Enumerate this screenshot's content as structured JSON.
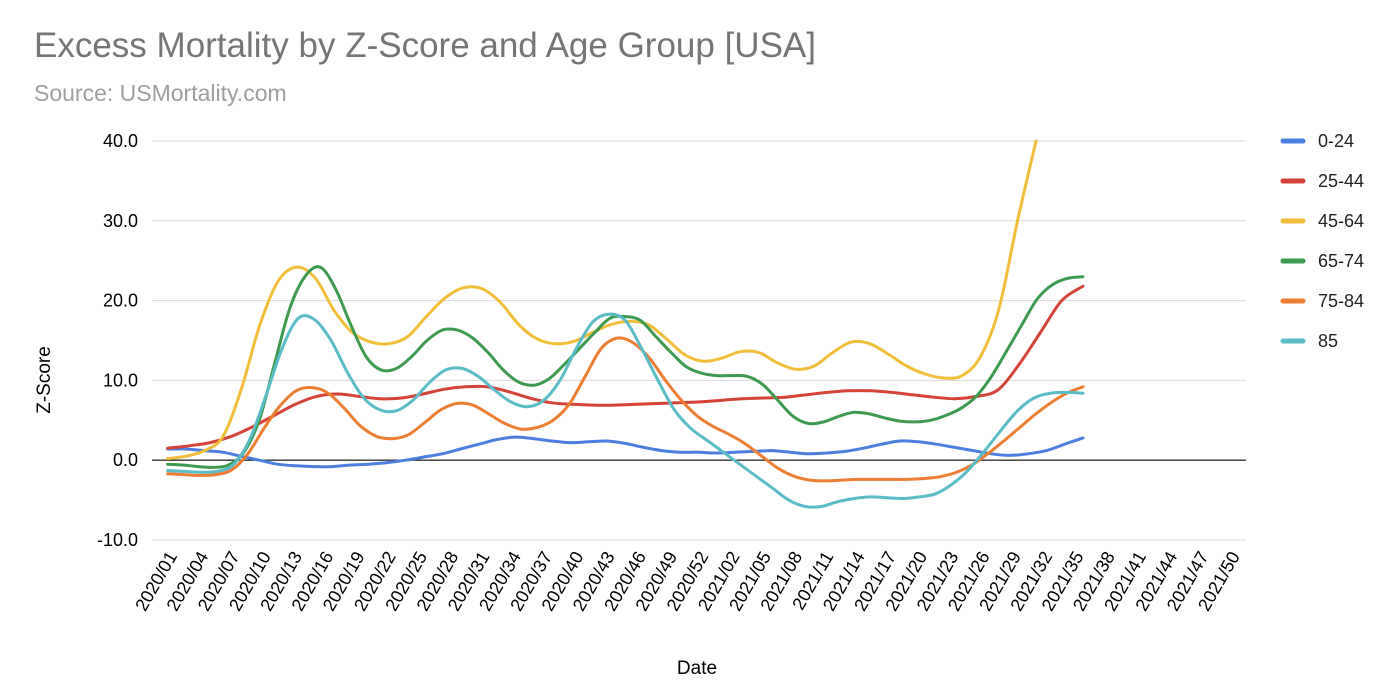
{
  "chart_data": {
    "type": "line",
    "title": "Excess Mortality by Z-Score and Age Group [USA]",
    "subtitle": "Source: USMortality.com",
    "xlabel": "Date",
    "ylabel": "Z-Score",
    "ylim": [
      -10,
      40
    ],
    "yticks": [
      "40.0",
      "30.0",
      "20.0",
      "10.0",
      "0.0",
      "-10.0"
    ],
    "ytick_values": [
      40,
      30,
      20,
      10,
      0,
      -10
    ],
    "grid": true,
    "legend_position": "right",
    "x_tick_labels": [
      "2020/01",
      "2020/04",
      "2020/07",
      "2020/10",
      "2020/13",
      "2020/16",
      "2020/19",
      "2020/22",
      "2020/25",
      "2020/28",
      "2020/31",
      "2020/34",
      "2020/37",
      "2020/40",
      "2020/43",
      "2020/46",
      "2020/49",
      "2020/52",
      "2021/02",
      "2021/05",
      "2021/08",
      "2021/11",
      "2021/14",
      "2021/17",
      "2021/20",
      "2021/23",
      "2021/26",
      "2021/29",
      "2021/32",
      "2021/35",
      "2021/38",
      "2021/41",
      "2021/44",
      "2021/47",
      "2021/50"
    ],
    "series": [
      {
        "name": "0-24",
        "color": "#4a7fe0",
        "values": [
          1.4,
          1.4,
          1.2,
          1.0,
          0.5,
          0.0,
          -0.5,
          -0.7,
          -0.8,
          -0.8,
          -0.6,
          -0.5,
          -0.3,
          0.0,
          0.4,
          0.8,
          1.4,
          2.0,
          2.6,
          2.9,
          2.7,
          2.4,
          2.2,
          2.3,
          2.4,
          2.1,
          1.6,
          1.2,
          1.0,
          1.0,
          0.9,
          1.0,
          1.1,
          1.2,
          1.0,
          0.8,
          0.9,
          1.1,
          1.5,
          2.0,
          2.4,
          2.3,
          2.0,
          1.6,
          1.2,
          0.8,
          0.6,
          0.8,
          1.2,
          2.0,
          2.8
        ]
      },
      {
        "name": "25-44",
        "color": "#d34338",
        "values": [
          1.5,
          1.8,
          2.2,
          3.0,
          4.2,
          5.6,
          7.0,
          8.0,
          8.3,
          8.0,
          7.7,
          7.8,
          8.3,
          8.9,
          9.2,
          9.2,
          8.6,
          7.8,
          7.2,
          7.0,
          6.9,
          6.9,
          7.0,
          7.1,
          7.2,
          7.3,
          7.5,
          7.7,
          7.8,
          7.9,
          8.2,
          8.5,
          8.7,
          8.7,
          8.5,
          8.2,
          7.9,
          7.7,
          8.0,
          8.8,
          12.0,
          16.0,
          20.0,
          21.8
        ]
      },
      {
        "name": "45-64",
        "color": "#f2be3a",
        "values": [
          0.2,
          0.5,
          1.2,
          3.0,
          9.0,
          17.0,
          22.5,
          24.2,
          22.8,
          18.8,
          16.0,
          14.8,
          14.6,
          15.5,
          18.0,
          20.3,
          21.6,
          21.5,
          19.8,
          17.0,
          15.2,
          14.6,
          14.9,
          16.0,
          17.0,
          17.4,
          17.0,
          15.2,
          13.2,
          12.4,
          12.8,
          13.6,
          13.5,
          12.2,
          11.4,
          11.8,
          13.5,
          14.8,
          14.6,
          13.3,
          11.8,
          10.8,
          10.3,
          10.6,
          13.0,
          19.0,
          30.0,
          40.0
        ]
      },
      {
        "name": "65-74",
        "color": "#3d9a4f",
        "values": [
          -0.5,
          -0.6,
          -0.8,
          -0.9,
          -0.6,
          1.0,
          5.0,
          12.0,
          19.0,
          23.0,
          24.2,
          21.5,
          17.0,
          13.0,
          11.3,
          11.5,
          13.0,
          15.0,
          16.3,
          16.3,
          15.3,
          13.5,
          11.3,
          9.8,
          9.4,
          10.2,
          12.0,
          14.0,
          16.0,
          17.8,
          18.0,
          17.5,
          15.5,
          13.5,
          11.7,
          10.9,
          10.6,
          10.6,
          10.5,
          9.5,
          7.5,
          5.5,
          4.6,
          4.8,
          5.5,
          6.0,
          5.8,
          5.3,
          4.9,
          4.8,
          5.0,
          5.6,
          6.5,
          8.0,
          10.5,
          13.7,
          17.0,
          20.2,
          22.0,
          22.8,
          23.0
        ]
      },
      {
        "name": "75-84",
        "color": "#ec7d33",
        "values": [
          -1.7,
          -1.8,
          -1.9,
          -1.8,
          -1.2,
          0.8,
          4.0,
          6.8,
          8.7,
          9.1,
          8.4,
          6.5,
          4.3,
          3.0,
          2.7,
          3.2,
          4.7,
          6.3,
          7.1,
          6.9,
          5.8,
          4.6,
          3.9,
          4.1,
          5.0,
          7.0,
          10.5,
          14.0,
          15.3,
          14.7,
          12.8,
          10.0,
          7.5,
          5.5,
          4.2,
          3.2,
          2.0,
          0.5,
          -1.0,
          -2.0,
          -2.5,
          -2.6,
          -2.5,
          -2.4,
          -2.4,
          -2.4,
          -2.4,
          -2.3,
          -2.1,
          -1.6,
          -0.7,
          0.7,
          2.3,
          4.0,
          5.7,
          7.2,
          8.4,
          9.2
        ]
      },
      {
        "name": "85",
        "color": "#5bbbc6",
        "values": [
          -1.3,
          -1.4,
          -1.5,
          -1.4,
          -0.6,
          2.5,
          8.0,
          14.0,
          17.8,
          17.6,
          15.0,
          11.0,
          7.8,
          6.3,
          6.2,
          7.5,
          9.7,
          11.3,
          11.5,
          10.5,
          8.8,
          7.3,
          6.7,
          7.5,
          10.0,
          14.0,
          17.3,
          18.3,
          17.5,
          14.0,
          10.0,
          6.3,
          4.0,
          2.5,
          1.0,
          -0.5,
          -2.0,
          -3.5,
          -5.0,
          -5.8,
          -5.8,
          -5.2,
          -4.8,
          -4.6,
          -4.7,
          -4.8,
          -4.6,
          -4.2,
          -3.0,
          -1.2,
          1.2,
          3.8,
          6.2,
          7.8,
          8.4,
          8.5,
          8.4
        ]
      }
    ]
  }
}
